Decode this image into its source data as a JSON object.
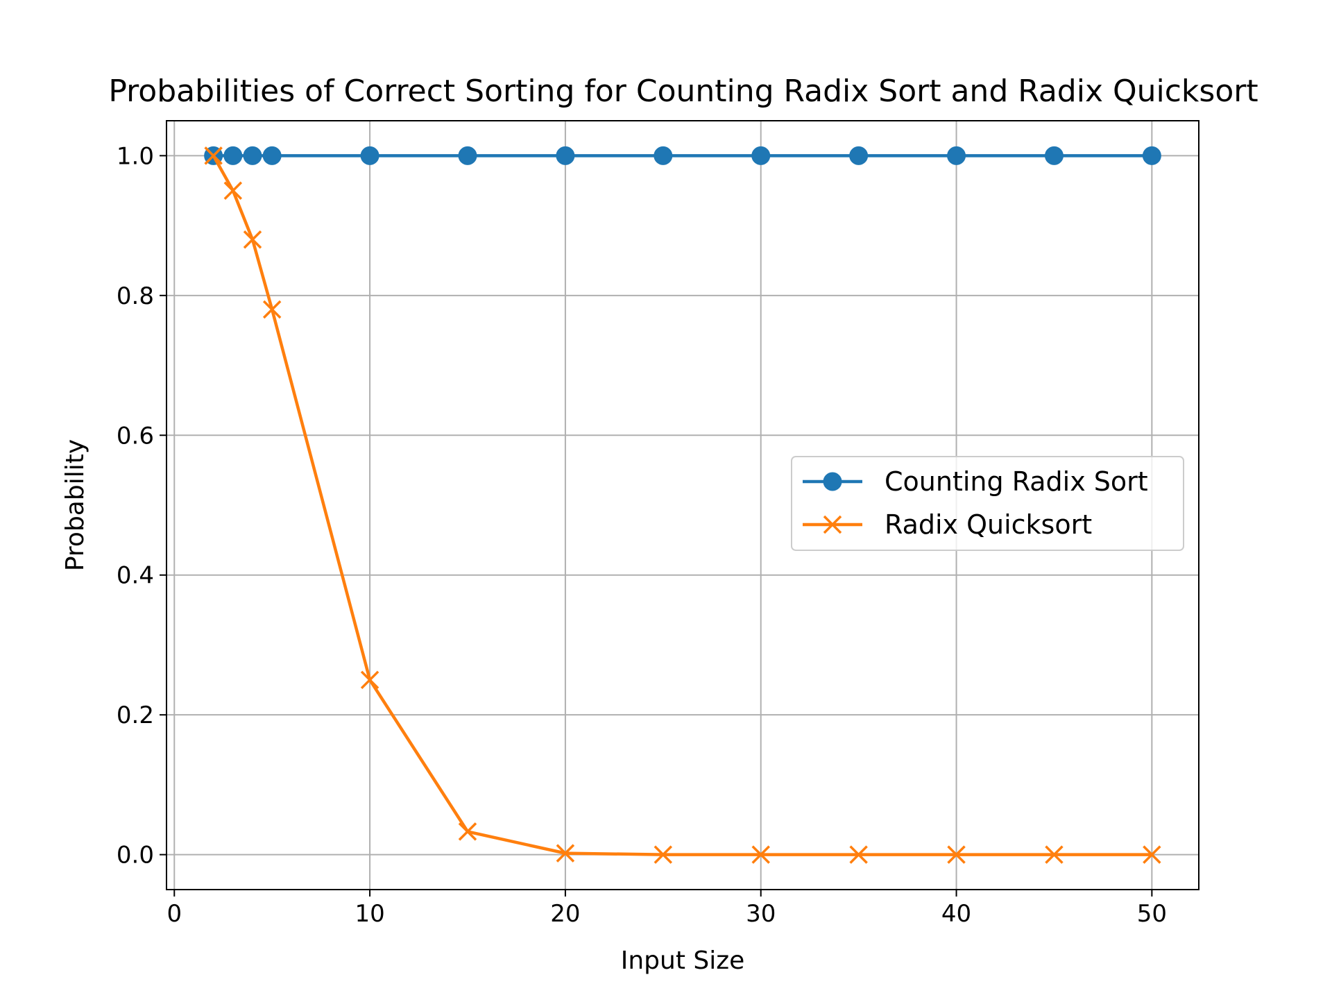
{
  "chart_data": {
    "type": "line",
    "title": "Probabilities of Correct Sorting for Counting Radix Sort and Radix Quicksort",
    "xlabel": "Input Size",
    "ylabel": "Probability",
    "xlim": [
      -0.4,
      52.4
    ],
    "ylim": [
      -0.05,
      1.05
    ],
    "xticks": [
      0,
      10,
      20,
      30,
      40,
      50
    ],
    "xtick_labels": [
      "0",
      "10",
      "20",
      "30",
      "40",
      "50"
    ],
    "yticks": [
      0.0,
      0.2,
      0.4,
      0.6,
      0.8,
      1.0
    ],
    "ytick_labels": [
      "0.0",
      "0.2",
      "0.4",
      "0.6",
      "0.8",
      "1.0"
    ],
    "grid": true,
    "legend_position": "center-right",
    "x": [
      2,
      3,
      4,
      5,
      10,
      15,
      20,
      25,
      30,
      35,
      40,
      45,
      50
    ],
    "series": [
      {
        "name": "Counting Radix Sort",
        "color": "#1f77b4",
        "marker": "circle",
        "values": [
          1.0,
          1.0,
          1.0,
          1.0,
          1.0,
          1.0,
          1.0,
          1.0,
          1.0,
          1.0,
          1.0,
          1.0,
          1.0
        ]
      },
      {
        "name": "Radix Quicksort",
        "color": "#ff7f0e",
        "marker": "x",
        "values": [
          1.0,
          0.95,
          0.88,
          0.78,
          0.25,
          0.033,
          0.002,
          0.0,
          0.0,
          0.0,
          0.0,
          0.0,
          0.0
        ]
      }
    ]
  }
}
